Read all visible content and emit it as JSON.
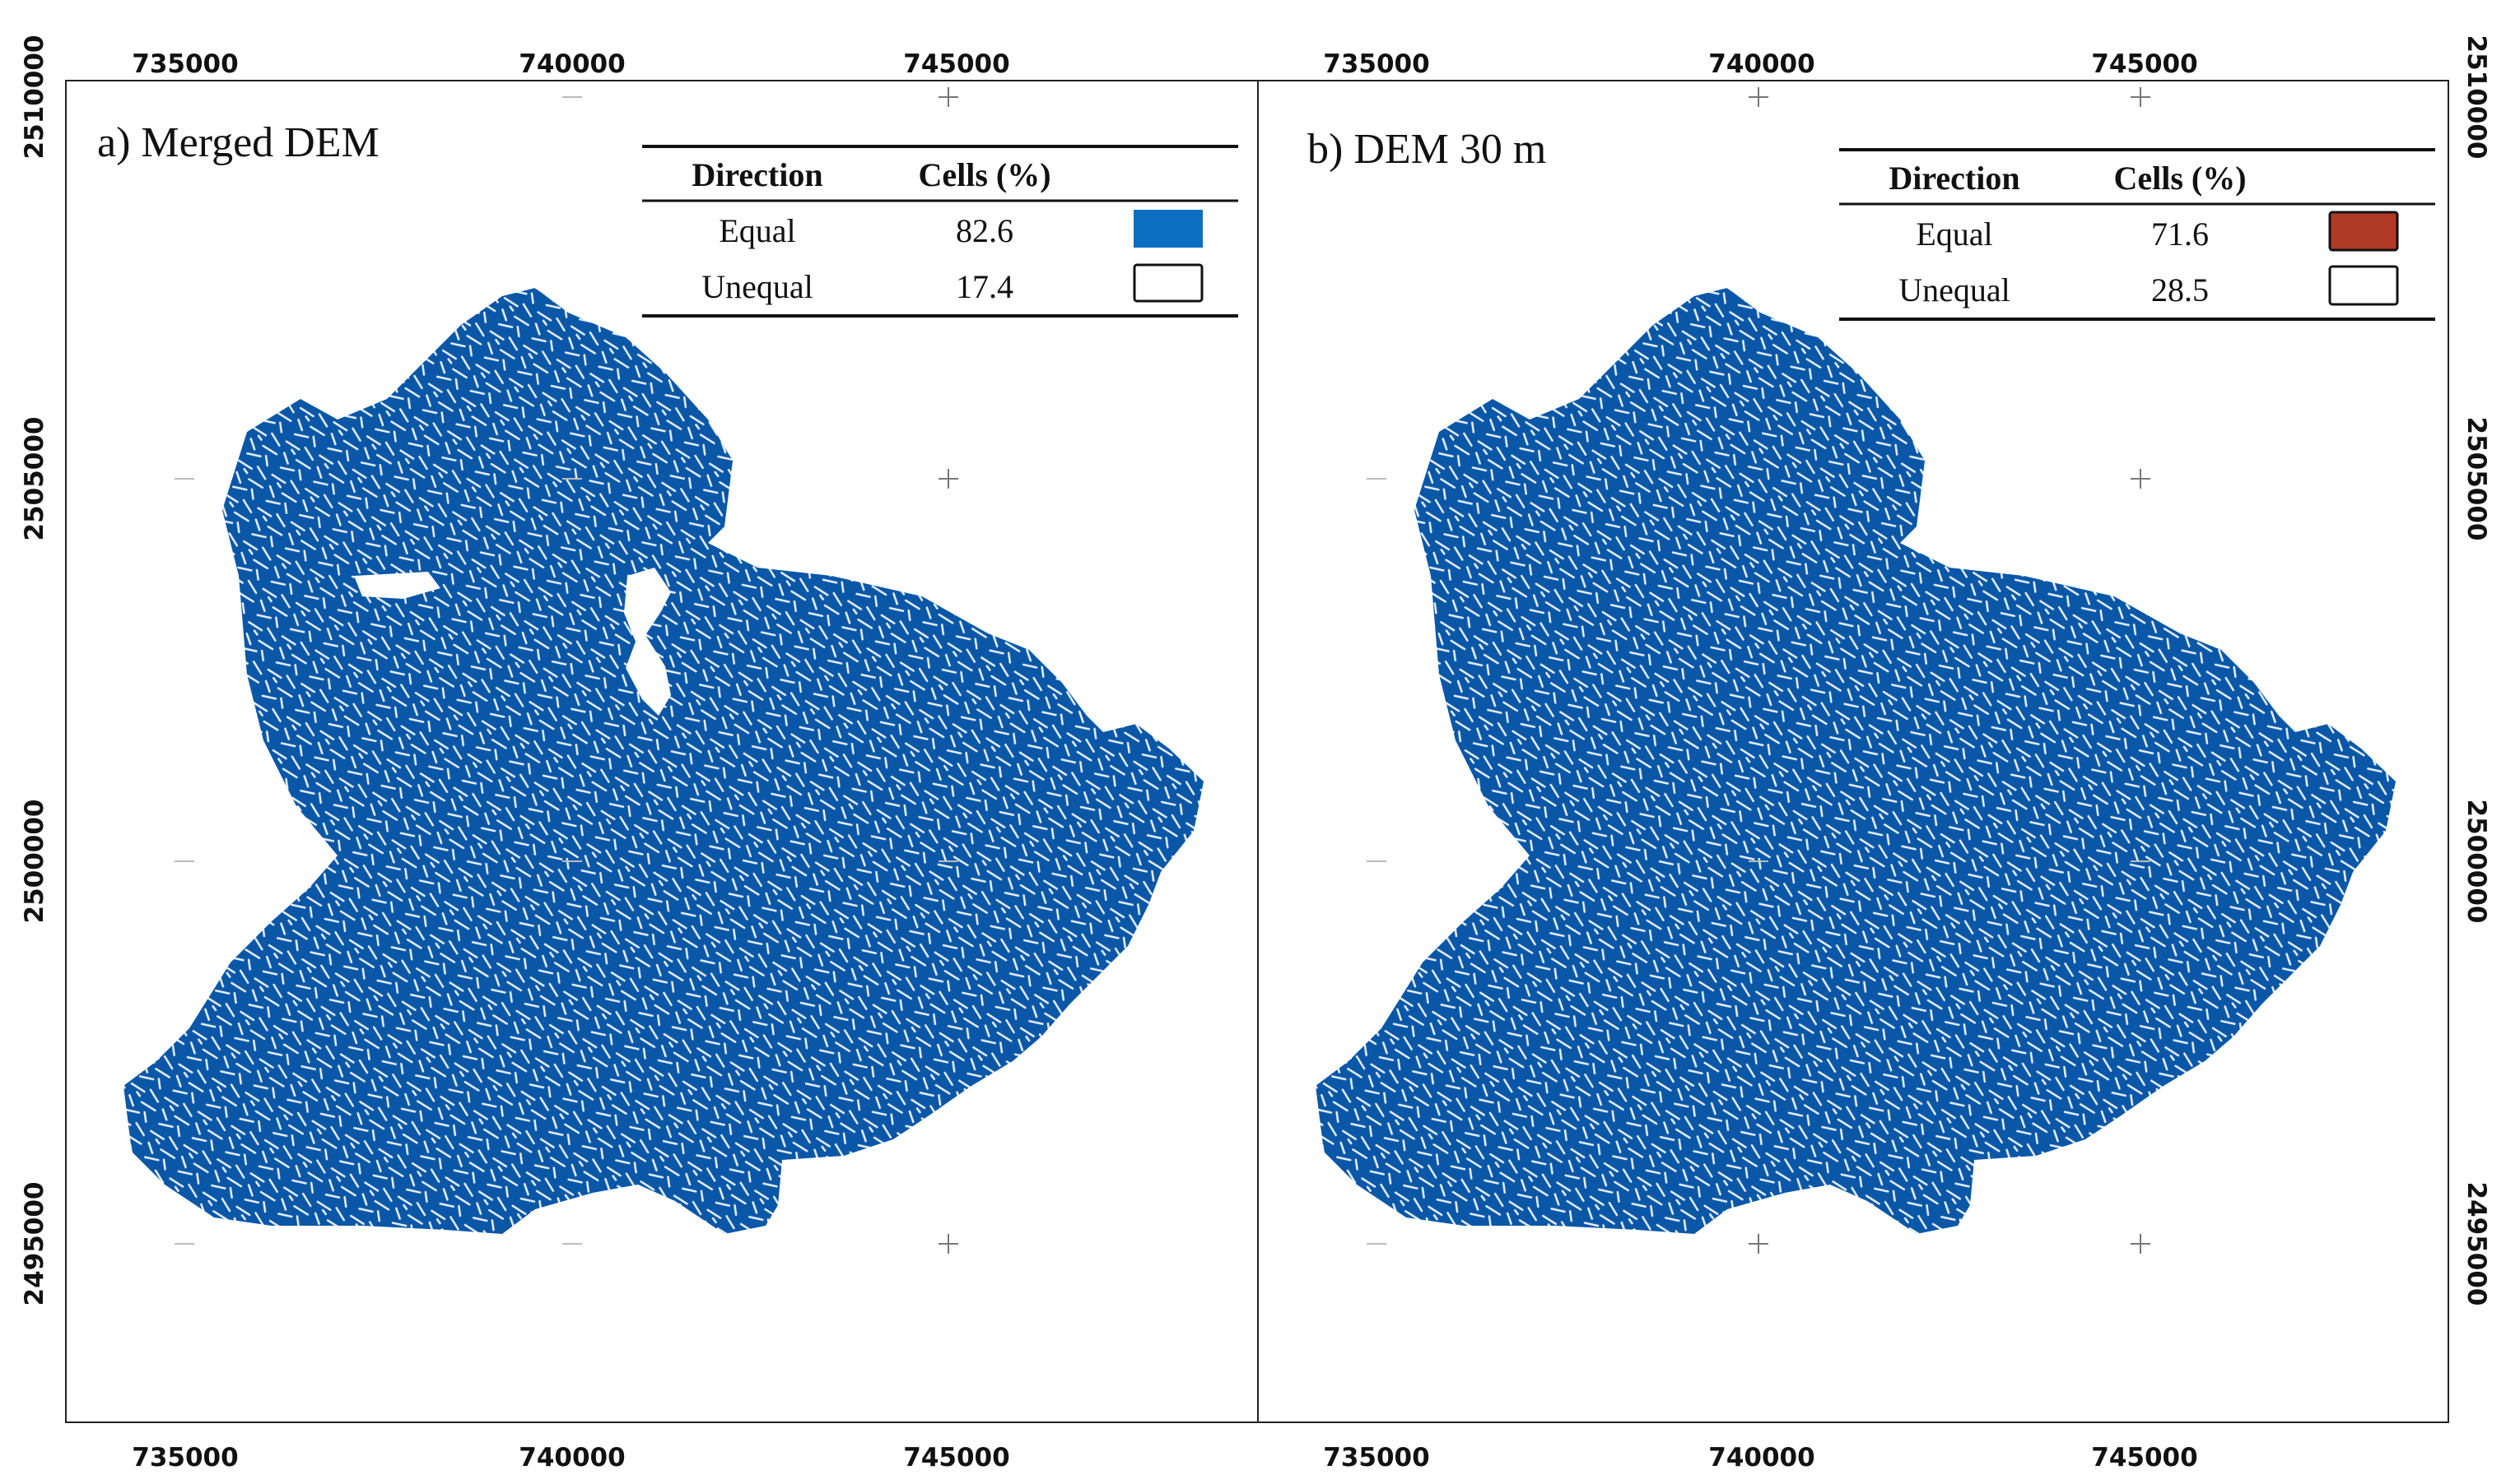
{
  "colors": {
    "equal_a": "#0a57a8",
    "equal_a_legend": "#0c6fc1",
    "equal_b": "#a72b1d",
    "equal_b_legend": "#b03a28",
    "unequal": "#ffffff"
  },
  "axes": {
    "x_ticks": [
      "735000",
      "740000",
      "745000"
    ],
    "y_ticks": [
      "2510000",
      "2505000",
      "2500000",
      "2495000"
    ]
  },
  "panels": [
    {
      "id": "a",
      "title": "a) Merged DEM",
      "legend": {
        "headers": [
          "Direction",
          "Cells (%)"
        ],
        "rows": [
          {
            "direction": "Equal",
            "cells": "82.6",
            "icon": "swatch-blue"
          },
          {
            "direction": "Unequal",
            "cells": "17.4",
            "icon": "swatch-white"
          }
        ]
      }
    },
    {
      "id": "b",
      "title": "b) DEM 30 m",
      "legend": {
        "headers": [
          "Direction",
          "Cells (%)"
        ],
        "rows": [
          {
            "direction": "Equal",
            "cells": "71.6",
            "icon": "swatch-red"
          },
          {
            "direction": "Unequal",
            "cells": "28.5",
            "icon": "swatch-white"
          }
        ]
      }
    }
  ]
}
